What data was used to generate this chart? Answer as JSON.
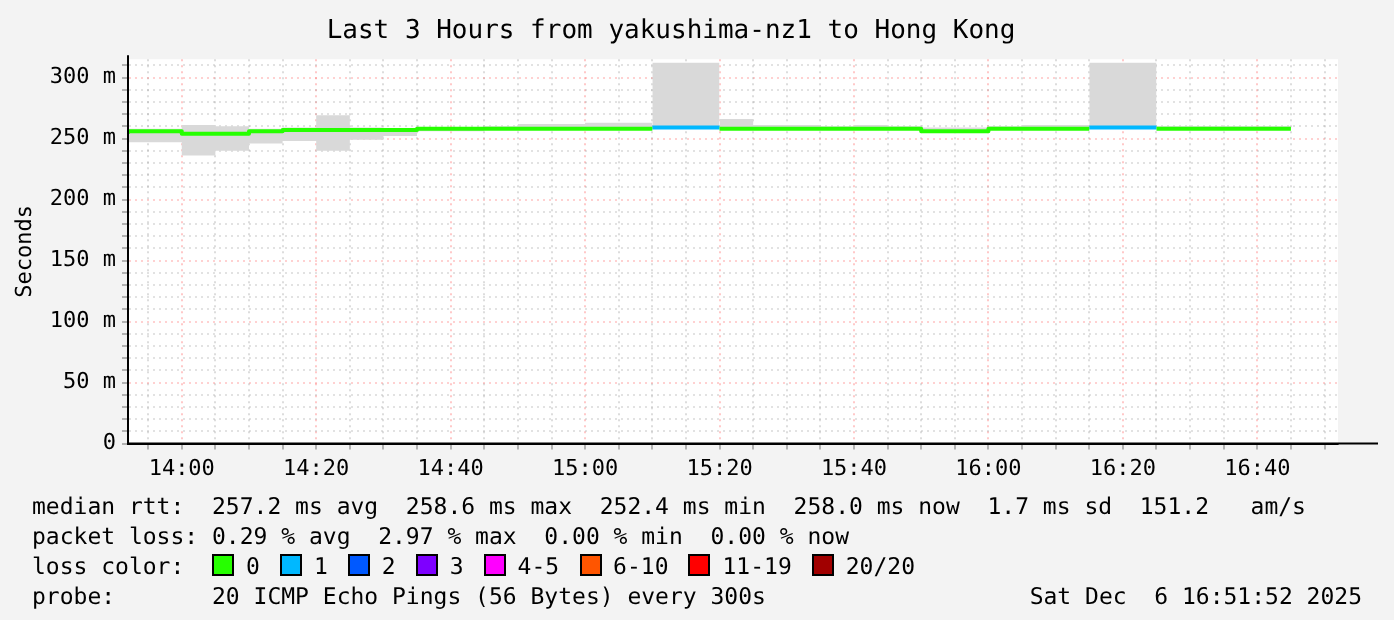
{
  "chart_data": {
    "type": "step",
    "title": "Last 3 Hours from yakushima-nz1 to Hong Kong",
    "ylabel": "Seconds",
    "legend_title": "loss color:",
    "legend": "bottom",
    "grid": true,
    "xlim": [
      13.8667,
      16.8667
    ],
    "xticks": [
      {
        "value": 13.9167,
        "label": null
      },
      {
        "value": 14,
        "label": "14:00"
      },
      {
        "value": 14.0833,
        "label": null
      },
      {
        "value": 14.1667,
        "label": null
      },
      {
        "value": 14.25,
        "label": null
      },
      {
        "value": 14.3333,
        "label": "14:20"
      },
      {
        "value": 14.4167,
        "label": null
      },
      {
        "value": 14.5,
        "label": null
      },
      {
        "value": 14.5833,
        "label": null
      },
      {
        "value": 14.6667,
        "label": "14:40"
      },
      {
        "value": 14.75,
        "label": null
      },
      {
        "value": 14.8333,
        "label": null
      },
      {
        "value": 14.9167,
        "label": null
      },
      {
        "value": 15,
        "label": "15:00"
      },
      {
        "value": 15.0833,
        "label": null
      },
      {
        "value": 15.1667,
        "label": null
      },
      {
        "value": 15.25,
        "label": null
      },
      {
        "value": 15.3333,
        "label": "15:20"
      },
      {
        "value": 15.4167,
        "label": null
      },
      {
        "value": 15.5,
        "label": null
      },
      {
        "value": 15.5833,
        "label": null
      },
      {
        "value": 15.6667,
        "label": "15:40"
      },
      {
        "value": 15.75,
        "label": null
      },
      {
        "value": 15.8333,
        "label": null
      },
      {
        "value": 15.9167,
        "label": null
      },
      {
        "value": 16,
        "label": "16:00"
      },
      {
        "value": 16.0833,
        "label": null
      },
      {
        "value": 16.1667,
        "label": null
      },
      {
        "value": 16.25,
        "label": null
      },
      {
        "value": 16.3333,
        "label": "16:20"
      },
      {
        "value": 16.4167,
        "label": null
      },
      {
        "value": 16.5,
        "label": null
      },
      {
        "value": 16.5833,
        "label": null
      },
      {
        "value": 16.6667,
        "label": "16:40"
      },
      {
        "value": 16.75,
        "label": null
      },
      {
        "value": 16.8333,
        "label": null
      }
    ],
    "ylim": [
      0,
      315
    ],
    "yticks": [
      {
        "value": 0,
        "label": "0"
      },
      {
        "value": 10,
        "label": null
      },
      {
        "value": 20,
        "label": null
      },
      {
        "value": 30,
        "label": null
      },
      {
        "value": 40,
        "label": null
      },
      {
        "value": 50,
        "label": "50 m"
      },
      {
        "value": 60,
        "label": null
      },
      {
        "value": 70,
        "label": null
      },
      {
        "value": 80,
        "label": null
      },
      {
        "value": 90,
        "label": null
      },
      {
        "value": 100,
        "label": "100 m"
      },
      {
        "value": 110,
        "label": null
      },
      {
        "value": 120,
        "label": null
      },
      {
        "value": 130,
        "label": null
      },
      {
        "value": 140,
        "label": null
      },
      {
        "value": 150,
        "label": "150 m"
      },
      {
        "value": 160,
        "label": null
      },
      {
        "value": 170,
        "label": null
      },
      {
        "value": 180,
        "label": null
      },
      {
        "value": 190,
        "label": null
      },
      {
        "value": 200,
        "label": "200 m"
      },
      {
        "value": 210,
        "label": null
      },
      {
        "value": 220,
        "label": null
      },
      {
        "value": 230,
        "label": null
      },
      {
        "value": 240,
        "label": null
      },
      {
        "value": 250,
        "label": "250 m"
      },
      {
        "value": 260,
        "label": null
      },
      {
        "value": 270,
        "label": null
      },
      {
        "value": 280,
        "label": null
      },
      {
        "value": 290,
        "label": null
      },
      {
        "value": 300,
        "label": "300 m"
      },
      {
        "value": 310,
        "label": null
      }
    ],
    "series": [
      {
        "name": "0",
        "color": "#26ff00",
        "x": [
          13.8667,
          14,
          14.0833,
          14.1667,
          14.25,
          14.3333,
          14.4167,
          14.5,
          14.5833,
          14.6667,
          14.75,
          14.8333,
          14.9167,
          15,
          15.0833,
          15.1667,
          15.25,
          15.3333,
          15.4167,
          15.5,
          15.5833,
          15.6667,
          15.75,
          15.8333,
          15.9167,
          16,
          16.0833,
          16.1667,
          16.25,
          16.3333,
          16.4167,
          16.5,
          16.5833,
          16.6667,
          16.75
        ],
        "values": [
          254,
          256,
          254,
          254,
          256,
          257,
          257,
          257,
          257,
          258,
          258,
          258,
          258,
          258,
          258,
          258,
          null,
          258,
          258,
          258,
          258,
          258,
          258,
          258,
          256,
          256,
          258,
          258,
          258,
          null,
          258,
          258,
          258,
          258,
          258
        ],
        "lower": [
          245,
          247,
          236,
          240,
          246,
          248,
          240,
          249,
          252,
          256,
          256,
          257,
          257,
          257,
          258,
          258,
          null,
          258,
          258,
          257,
          257,
          257,
          257,
          257,
          255,
          255,
          257,
          257,
          257,
          null,
          258,
          258,
          258,
          258,
          258
        ],
        "upper": [
          259,
          258,
          261,
          260,
          258,
          259,
          269,
          259,
          258,
          258,
          259,
          260,
          262,
          262,
          263,
          263,
          null,
          265,
          266,
          261,
          261,
          260,
          261,
          260,
          259,
          259,
          260,
          261,
          261,
          null,
          263,
          260,
          260,
          260,
          260
        ]
      },
      {
        "name": "1",
        "color": "#00b8ff",
        "x": [
          15.1667,
          15.25,
          15.3333,
          15.4167,
          16.25,
          16.3333,
          16.4167
        ],
        "values": [
          259,
          259,
          259,
          null,
          259,
          259,
          259
        ],
        "lower": [
          258,
          258,
          258,
          null,
          258,
          258,
          258
        ],
        "upper": [
          264,
          312,
          312,
          null,
          261,
          312,
          312
        ]
      },
      {
        "name": "2",
        "color": "#0059ff"
      },
      {
        "name": "3",
        "color": "#7e00ff"
      },
      {
        "name": "4-5",
        "color": "#ff00ff"
      },
      {
        "name": "6-10",
        "color": "#ff5500"
      },
      {
        "name": "11-19",
        "color": "#ff0000"
      },
      {
        "name": "20/20",
        "color": "#a10000"
      }
    ],
    "annotations": [
      "median rtt:  257.2 ms avg  258.6 ms max  252.4 ms min  258.0 ms now  1.7 ms sd  151.2   am/s",
      "packet loss: 0.29 % avg  2.97 % max  0.00 % min  0.00 % now",
      "probe:       20 ICMP Echo Pings (56 Bytes) every 300s",
      "Sat Dec  6 16:51:52 2025"
    ]
  }
}
